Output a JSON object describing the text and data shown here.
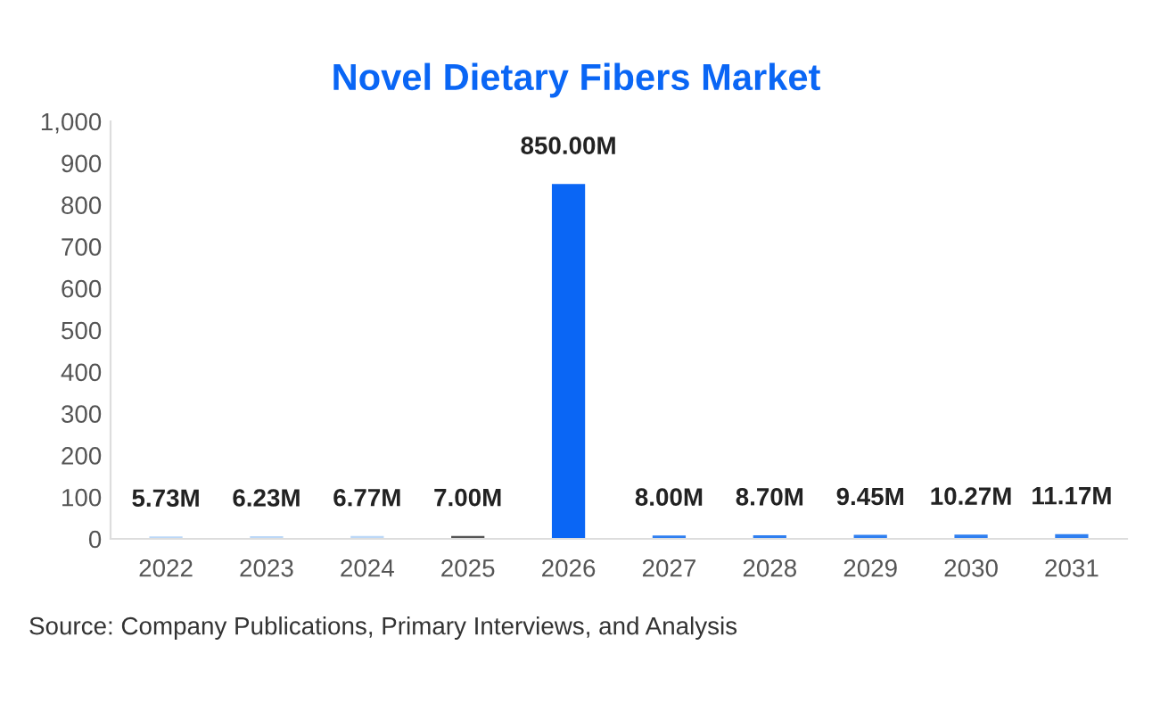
{
  "chart_data": {
    "type": "bar",
    "title": "Novel Dietary Fibers Market",
    "categories": [
      "2022",
      "2023",
      "2024",
      "2025",
      "2026",
      "2027",
      "2028",
      "2029",
      "2030",
      "2031"
    ],
    "values": [
      5.73,
      6.23,
      6.77,
      7.0,
      850.0,
      8.0,
      8.7,
      9.45,
      10.27,
      11.17
    ],
    "colors": [
      "#bcd8f7",
      "#bcd8f7",
      "#bcd8f7",
      "#555555",
      "#0a66f5",
      "#2f7ff0",
      "#2f7ff0",
      "#2f7ff0",
      "#2f7ff0",
      "#2f7ff0"
    ],
    "value_labels": [
      "5.73M",
      "6.23M",
      "6.77M",
      "7.00M",
      "850.00M",
      "8.00M",
      "8.70M",
      "9.45M",
      "10.27M",
      "11.17M"
    ],
    "ylim": [
      0,
      1000
    ],
    "yticks": [
      0,
      100,
      200,
      300,
      400,
      500,
      600,
      700,
      800,
      900,
      {
        "value": 1000,
        "label": "1,000"
      }
    ],
    "grid": false,
    "annotations": [
      "Source: Company Publications, Primary Interviews, and Analysis"
    ]
  }
}
